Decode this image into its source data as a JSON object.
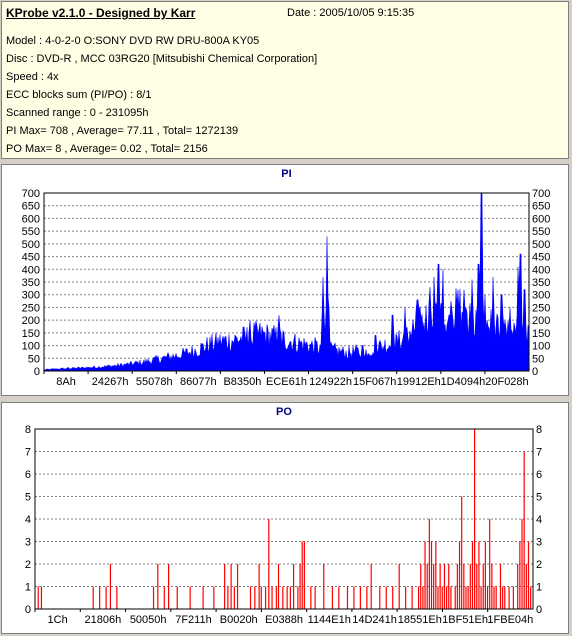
{
  "info": {
    "title": "KProbe v2.1.0 - Designed by Karr",
    "date": "Date : 2005/10/05 9:15:35",
    "lines": [
      "Model : 4-0-2-0 O:SONY    DVD RW DRU-800A  KY05",
      "Disc : DVD-R , MCC 03RG20  [Mitsubishi Chemical Corporation]",
      "Speed : 4x",
      "ECC blocks sum (PI/PO) : 8/1",
      "Scanned range : 0 - 231095h",
      "PI Max= 708 , Average= 77.11 , Total= 1272139",
      "PO Max= 8 , Average= 0.02 , Total= 2156"
    ]
  },
  "colors": {
    "pi": "#0000ff",
    "po": "#ff0000",
    "grid": "#808080",
    "info_bg": "#ffffe6"
  },
  "chart_data": [
    {
      "type": "area",
      "title": "PI",
      "xlabel": "",
      "ylabel": "",
      "ylim": [
        0,
        700
      ],
      "yticks": [
        0,
        50,
        100,
        150,
        200,
        250,
        300,
        350,
        400,
        450,
        500,
        550,
        600,
        650,
        700
      ],
      "xtick_labels": [
        "8Ah",
        "24267h",
        "55078h",
        "86077h",
        "B8350h",
        "ECE61h",
        "124922h",
        "15F067h",
        "19912Eh",
        "1D4094h",
        "20F028h"
      ],
      "xlim": [
        0,
        231095
      ],
      "grid": true,
      "x": [
        0,
        6000,
        12000,
        18000,
        24000,
        30000,
        36000,
        42000,
        48000,
        54000,
        60000,
        66000,
        72000,
        78000,
        84000,
        90000,
        96000,
        102000,
        108000,
        114000,
        120000,
        126000,
        132000,
        138000,
        144000,
        150000,
        156000,
        162000,
        168000,
        174000,
        180000,
        186000,
        192000,
        198000,
        204000,
        210000,
        216000,
        222000,
        228000,
        231095
      ],
      "values": [
        5,
        8,
        10,
        12,
        15,
        18,
        22,
        28,
        35,
        45,
        55,
        65,
        80,
        100,
        115,
        120,
        130,
        145,
        135,
        125,
        110,
        100,
        90,
        80,
        70,
        75,
        85,
        100,
        110,
        150,
        190,
        230,
        200,
        250,
        200,
        190,
        170,
        140,
        150,
        130
      ],
      "peaks": [
        {
          "x": 11500,
          "y": 15
        },
        {
          "x": 98000,
          "y": 200
        },
        {
          "x": 112000,
          "y": 220
        },
        {
          "x": 133000,
          "y": 370
        },
        {
          "x": 135000,
          "y": 530
        },
        {
          "x": 152000,
          "y": 100
        },
        {
          "x": 158000,
          "y": 140
        },
        {
          "x": 166000,
          "y": 220
        },
        {
          "x": 172000,
          "y": 250
        },
        {
          "x": 178000,
          "y": 280
        },
        {
          "x": 184000,
          "y": 330
        },
        {
          "x": 186000,
          "y": 370
        },
        {
          "x": 188000,
          "y": 420
        },
        {
          "x": 190000,
          "y": 400
        },
        {
          "x": 194000,
          "y": 260
        },
        {
          "x": 200000,
          "y": 320
        },
        {
          "x": 204000,
          "y": 360
        },
        {
          "x": 207000,
          "y": 420
        },
        {
          "x": 208500,
          "y": 708
        },
        {
          "x": 210000,
          "y": 300
        },
        {
          "x": 214000,
          "y": 370
        },
        {
          "x": 218000,
          "y": 300
        },
        {
          "x": 222000,
          "y": 250
        },
        {
          "x": 226000,
          "y": 410
        },
        {
          "x": 227000,
          "y": 460
        },
        {
          "x": 229000,
          "y": 320
        }
      ]
    },
    {
      "type": "bar",
      "title": "PO",
      "xlabel": "",
      "ylabel": "",
      "ylim": [
        0,
        8
      ],
      "yticks": [
        0,
        1,
        2,
        3,
        4,
        5,
        6,
        7,
        8
      ],
      "xtick_labels": [
        "1Ch",
        "21806h",
        "50050h",
        "7F211h",
        "B0020h",
        "E0388h",
        "1144E1h",
        "14D241h",
        "18551Eh",
        "1BF51Eh",
        "1FBE04h"
      ],
      "xlim": [
        0,
        231095
      ],
      "grid": true,
      "points": [
        [
          1500,
          1
        ],
        [
          3000,
          1
        ],
        [
          27000,
          1
        ],
        [
          30000,
          1
        ],
        [
          33000,
          1
        ],
        [
          35000,
          2
        ],
        [
          38000,
          1
        ],
        [
          55000,
          1
        ],
        [
          57000,
          2
        ],
        [
          60000,
          1
        ],
        [
          62000,
          2
        ],
        [
          66000,
          1
        ],
        [
          72000,
          1
        ],
        [
          78000,
          1
        ],
        [
          83000,
          1
        ],
        [
          88000,
          2
        ],
        [
          89500,
          1
        ],
        [
          91000,
          2
        ],
        [
          92500,
          1
        ],
        [
          94000,
          2
        ],
        [
          100000,
          1
        ],
        [
          102000,
          1
        ],
        [
          104000,
          2
        ],
        [
          105000,
          1
        ],
        [
          107000,
          1
        ],
        [
          108500,
          4
        ],
        [
          110000,
          1
        ],
        [
          112000,
          1
        ],
        [
          113000,
          2
        ],
        [
          115000,
          1
        ],
        [
          117000,
          1
        ],
        [
          118500,
          1
        ],
        [
          120000,
          2
        ],
        [
          122000,
          1
        ],
        [
          123000,
          2
        ],
        [
          124000,
          3
        ],
        [
          125000,
          3
        ],
        [
          128000,
          1
        ],
        [
          130000,
          1
        ],
        [
          134000,
          2
        ],
        [
          138000,
          1
        ],
        [
          141000,
          1
        ],
        [
          145000,
          1
        ],
        [
          148000,
          1
        ],
        [
          151000,
          1
        ],
        [
          154000,
          1
        ],
        [
          156000,
          2
        ],
        [
          160000,
          1
        ],
        [
          163000,
          1
        ],
        [
          166000,
          1
        ],
        [
          169000,
          2
        ],
        [
          172000,
          1
        ],
        [
          175000,
          1
        ],
        [
          178000,
          1
        ],
        [
          179000,
          2
        ],
        [
          180000,
          1
        ],
        [
          181000,
          3
        ],
        [
          182000,
          2
        ],
        [
          183000,
          4
        ],
        [
          184000,
          3
        ],
        [
          185000,
          2
        ],
        [
          186000,
          3
        ],
        [
          187000,
          1
        ],
        [
          188000,
          2
        ],
        [
          189000,
          1
        ],
        [
          190000,
          2
        ],
        [
          191000,
          1
        ],
        [
          192000,
          2
        ],
        [
          193000,
          1
        ],
        [
          195000,
          1
        ],
        [
          196000,
          2
        ],
        [
          197000,
          3
        ],
        [
          198000,
          5
        ],
        [
          199000,
          2
        ],
        [
          200000,
          1
        ],
        [
          201000,
          1
        ],
        [
          202000,
          2
        ],
        [
          203000,
          3
        ],
        [
          204000,
          8
        ],
        [
          205000,
          2
        ],
        [
          206000,
          3
        ],
        [
          207000,
          1
        ],
        [
          208000,
          2
        ],
        [
          209000,
          3
        ],
        [
          210000,
          1
        ],
        [
          211000,
          4
        ],
        [
          212000,
          2
        ],
        [
          213000,
          1
        ],
        [
          214000,
          1
        ],
        [
          216000,
          2
        ],
        [
          217000,
          1
        ],
        [
          218000,
          1
        ],
        [
          220000,
          1
        ],
        [
          222000,
          1
        ],
        [
          224000,
          2
        ],
        [
          225000,
          3
        ],
        [
          226000,
          4
        ],
        [
          227000,
          7
        ],
        [
          228000,
          2
        ],
        [
          229000,
          3
        ],
        [
          230000,
          1
        ]
      ]
    }
  ]
}
